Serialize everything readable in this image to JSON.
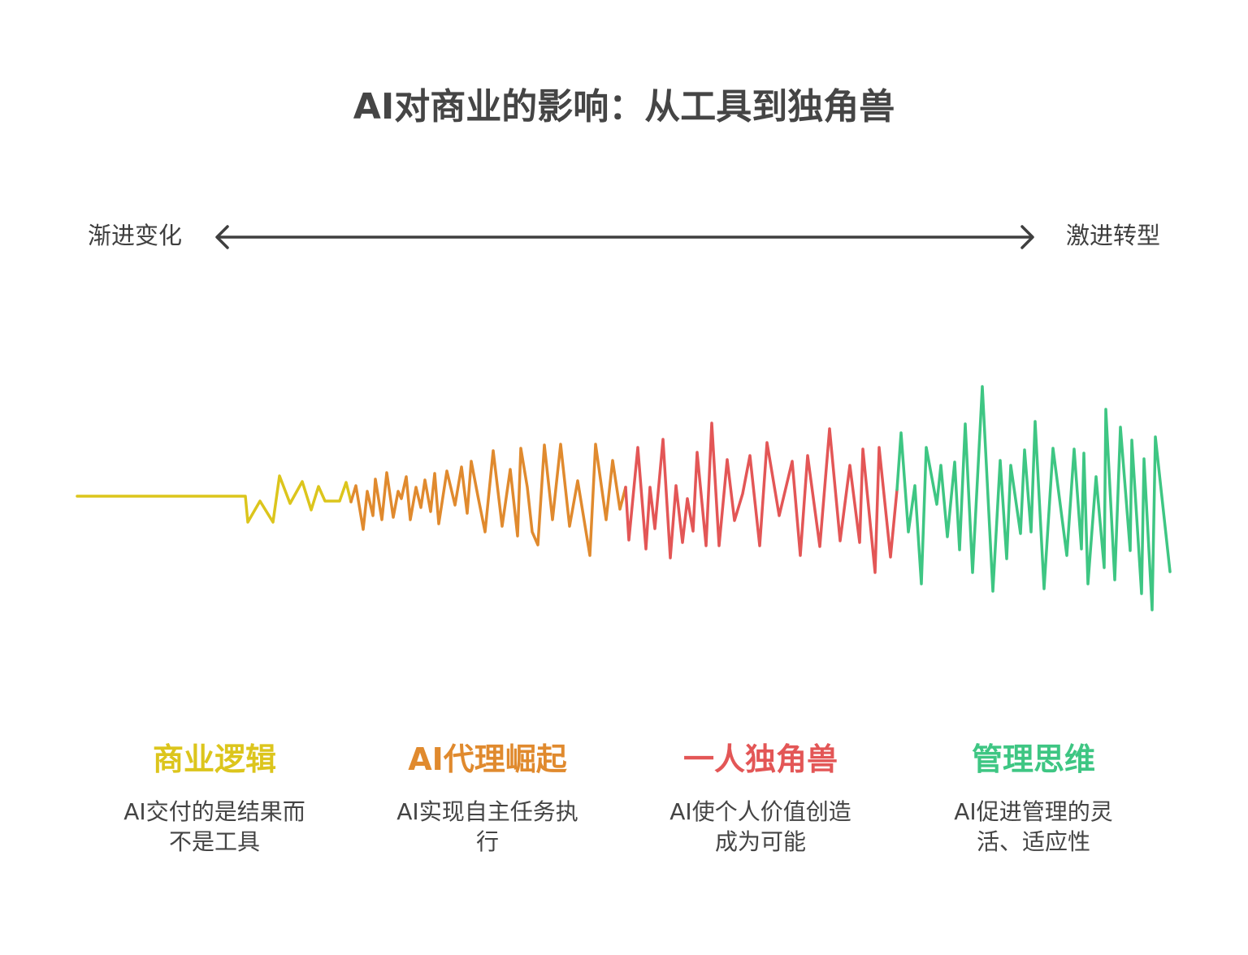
{
  "title": "AI对商业的影响：从工具到独角兽",
  "axis": {
    "left_label": "渐进变化",
    "right_label": "激进转型"
  },
  "phases": [
    {
      "title": "商业逻辑",
      "description": "AI交付的是结果而不是工具",
      "color": "#dcc51c"
    },
    {
      "title": "AI代理崛起",
      "description": "AI实现自主任务执行",
      "color": "#e08a2e"
    },
    {
      "title": "一人独角兽",
      "description": "AI使个人价值创造成为可能",
      "color": "#e35656"
    },
    {
      "title": "管理思维",
      "description": "AI促进管理的灵活、适应性",
      "color": "#3ec683"
    }
  ],
  "colors": {
    "axis": "#3f3f3f",
    "title": "#454545"
  }
}
